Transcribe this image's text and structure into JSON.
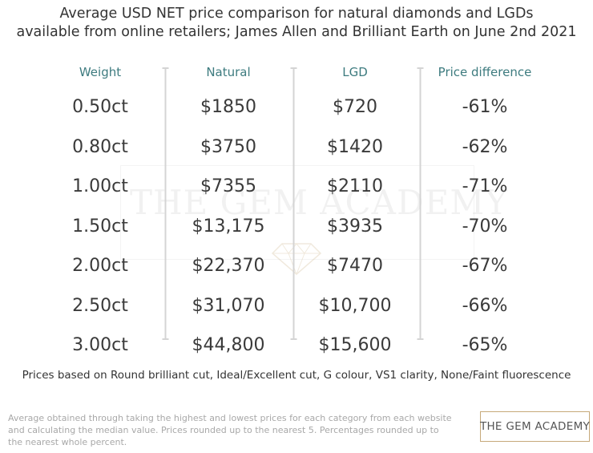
{
  "chart_data": {
    "type": "table",
    "title_lines": [
      "Average USD NET price comparison for natural diamonds and LGDs",
      "available from online retailers; James Allen and Brilliant Earth on June 2nd 2021"
    ],
    "columns": [
      "Weight",
      "Natural",
      "LGD",
      "Price difference"
    ],
    "rows": [
      [
        "0.50ct",
        "$1850",
        "$720",
        "-61%"
      ],
      [
        "0.80ct",
        "$3750",
        "$1420",
        "-62%"
      ],
      [
        "1.00ct",
        "$7355",
        "$2110",
        "-71%"
      ],
      [
        "1.50ct",
        "$13,175",
        "$3935",
        "-70%"
      ],
      [
        "2.00ct",
        "$22,370",
        "$7470",
        "-67%"
      ],
      [
        "2.50ct",
        "$31,070",
        "$10,700",
        "-66%"
      ],
      [
        "3.00ct",
        "$44,800",
        "$15,600",
        "-65%"
      ]
    ],
    "footnote": "Prices based on Round brilliant cut, Ideal/Excellent cut, G colour, VS1 clarity, None/Faint fluorescence"
  },
  "bottom_note_lines": [
    "Average obtained through taking the highest and lowest prices for each category from each website",
    "and calculating the median value.  Prices rounded up to the nearest 5. Percentages rounded up to",
    "the nearest whole percent."
  ],
  "watermark_text": "THE GEM ACADEMY",
  "logo_text": "THE GEM ACADEMY",
  "colors": {
    "header": "#3d7b7f",
    "divider": "#d4d4d4",
    "logo_border": "#c6a97a"
  }
}
